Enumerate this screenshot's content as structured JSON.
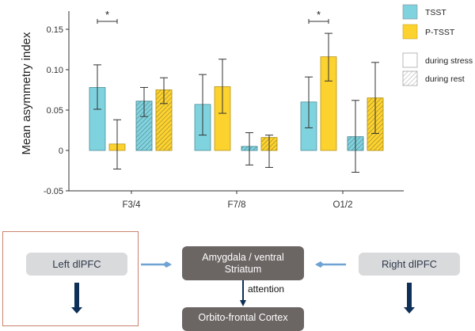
{
  "chart_data": {
    "type": "bar",
    "title": "",
    "xlabel": "",
    "ylabel": "Mean asymmetry index",
    "ylim": [
      -0.05,
      0.17
    ],
    "yticks": [
      -0.05,
      0,
      0.05,
      0.1,
      0.15
    ],
    "ytick_labels": [
      "-0.05",
      "0",
      "0.05",
      "0.10",
      "0.15"
    ],
    "categories": [
      "F3/4",
      "F7/8",
      "O1/2"
    ],
    "grid": false,
    "legend_position": "top-right",
    "legend": {
      "color_entries": [
        {
          "label": "TSST",
          "color": "#7fd3df"
        },
        {
          "label": "P-TSST",
          "color": "#fcd22e"
        }
      ],
      "pattern_entries": [
        {
          "label": "during stress",
          "pattern": "solid"
        },
        {
          "label": "during rest",
          "pattern": "hatched"
        }
      ]
    },
    "series": [
      {
        "name": "TSST during stress",
        "group": "TSST",
        "condition": "stress",
        "color": "#7fd3df",
        "hatched": false,
        "values": [
          0.078,
          0.057,
          0.06
        ],
        "err_high": [
          0.106,
          0.094,
          0.091
        ],
        "err_low": [
          0.051,
          0.019,
          0.028
        ]
      },
      {
        "name": "P-TSST during stress",
        "group": "P-TSST",
        "condition": "stress",
        "color": "#fcd22e",
        "hatched": false,
        "values": [
          0.008,
          0.079,
          0.116
        ],
        "err_high": [
          0.038,
          0.113,
          0.145
        ],
        "err_low": [
          -0.023,
          0.046,
          0.086
        ]
      },
      {
        "name": "TSST during rest",
        "group": "TSST",
        "condition": "rest",
        "color": "#7fd3df",
        "hatched": true,
        "values": [
          0.061,
          0.005,
          0.017
        ],
        "err_high": [
          0.078,
          0.022,
          0.062
        ],
        "err_low": [
          0.042,
          -0.018,
          -0.027
        ]
      },
      {
        "name": "P-TSST during rest",
        "group": "P-TSST",
        "condition": "rest",
        "color": "#fcd22e",
        "hatched": true,
        "values": [
          0.075,
          0.016,
          0.065
        ],
        "err_high": [
          0.09,
          0.019,
          0.109
        ],
        "err_low": [
          0.058,
          -0.021,
          0.021
        ]
      }
    ],
    "significance": [
      {
        "category": "F3/4",
        "between": [
          "TSST during stress",
          "P-TSST during stress"
        ],
        "label": "*"
      },
      {
        "category": "O1/2",
        "between": [
          "TSST during stress",
          "P-TSST during stress"
        ],
        "label": "*"
      }
    ]
  },
  "diagram": {
    "left_node": "Left dlPFC",
    "center_node_line1": "Amygdala / ventral",
    "center_node_line2": "Striatum",
    "right_node": "Right dlPFC",
    "edge_label": "attention",
    "bottom_node": "Orbito-frontal Cortex",
    "colors": {
      "light_node": "#d9dadc",
      "dark_node": "#6b6564",
      "side_arrow": "#6fa3d3",
      "down_arrow": "#0e2f57",
      "highlight_frame": "#c9826f"
    }
  }
}
